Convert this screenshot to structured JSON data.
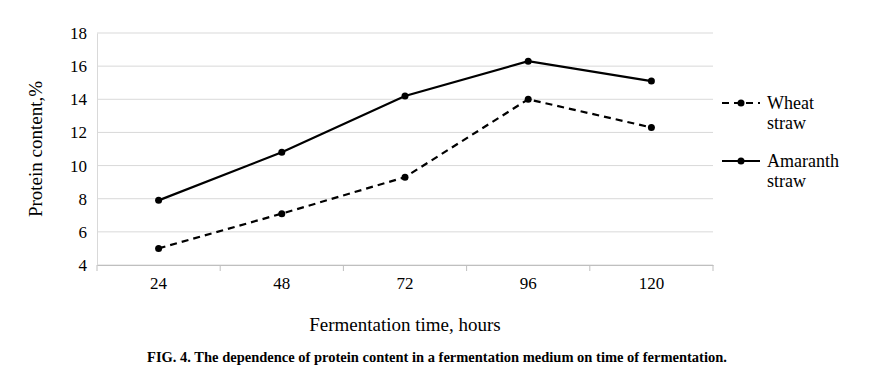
{
  "chart_data": {
    "type": "line",
    "title": "FIG. 4. The dependence of protein content in a fermentation medium on time of fermentation.",
    "x_label": "Fermentation time, hours",
    "y_label": "Protein content,%",
    "categories": [
      "24",
      "48",
      "72",
      "96",
      "120"
    ],
    "series": [
      {
        "name": "Wheat straw",
        "color": "#000000",
        "line_style": "dashed",
        "marker": "circle",
        "values": [
          5.0,
          7.1,
          9.3,
          14.0,
          12.3
        ]
      },
      {
        "name": "Amaranth straw",
        "color": "#000000",
        "line_style": "solid",
        "marker": "circle",
        "values": [
          7.9,
          10.8,
          14.2,
          16.3,
          15.1
        ]
      }
    ],
    "ylim": [
      4,
      18
    ],
    "yticks": [
      4,
      6,
      8,
      10,
      12,
      14,
      16,
      18
    ],
    "grid": true,
    "legend": "right"
  }
}
